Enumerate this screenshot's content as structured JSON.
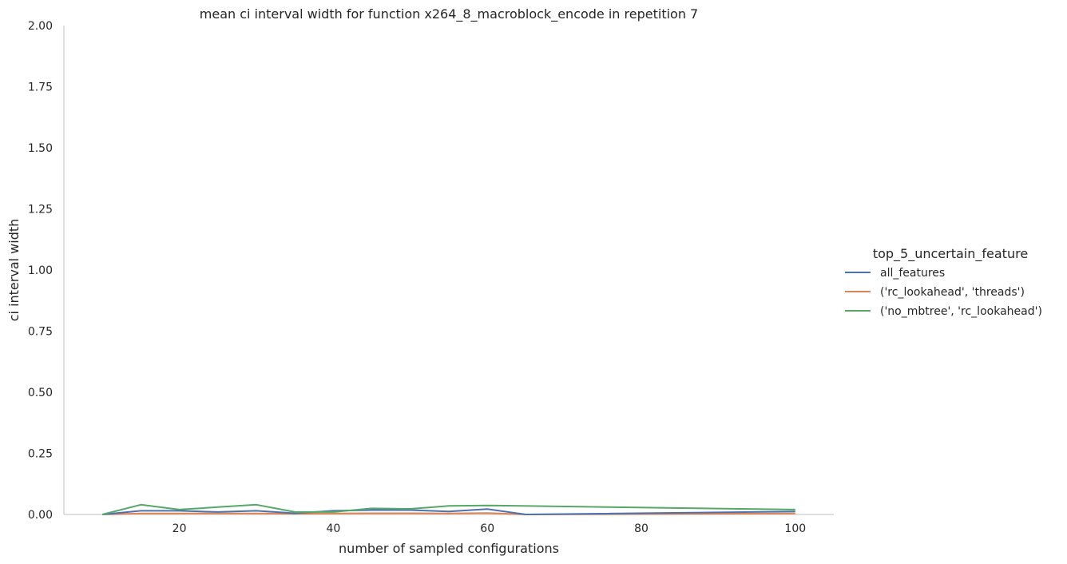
{
  "chart_data": {
    "type": "line",
    "title": "mean ci interval width for function x264_8_macroblock_encode in repetition 7",
    "xlabel": "number of sampled configurations",
    "ylabel": "ci interval width",
    "xlim": [
      5,
      105
    ],
    "ylim": [
      0,
      2.0
    ],
    "xticks": [
      20,
      40,
      60,
      80,
      100
    ],
    "xtick_labels": [
      "20",
      "40",
      "60",
      "80",
      "100"
    ],
    "yticks": [
      0,
      0.25,
      0.5,
      0.75,
      1.0,
      1.25,
      1.5,
      1.75,
      2.0
    ],
    "ytick_labels": [
      "0.00",
      "0.25",
      "0.50",
      "0.75",
      "1.00",
      "1.25",
      "1.50",
      "1.75",
      "2.00"
    ],
    "grid": false,
    "legend": {
      "title": "top_5_uncertain_feature",
      "placement": "right"
    },
    "series": [
      {
        "name": "all_features",
        "color": "#4c72b0",
        "x": [
          10,
          15,
          20,
          25,
          30,
          35,
          40,
          45,
          50,
          55,
          60,
          65,
          100
        ],
        "y": [
          0.0,
          0.015,
          0.015,
          0.01,
          0.015,
          0.005,
          0.015,
          0.018,
          0.018,
          0.012,
          0.022,
          0.0,
          0.012
        ]
      },
      {
        "name": "('rc_lookahead', 'threads')",
        "color": "#dd8452",
        "x": [
          10,
          15,
          20,
          25,
          30,
          35,
          40,
          45,
          50,
          55,
          60,
          65,
          100
        ],
        "y": [
          0.0,
          0.004,
          0.004,
          0.004,
          0.004,
          0.003,
          0.004,
          0.005,
          0.005,
          0.004,
          0.006,
          0.0,
          0.004
        ]
      },
      {
        "name": "('no_mbtree', 'rc_lookahead')",
        "color": "#55a868",
        "x": [
          10,
          15,
          20,
          25,
          30,
          35,
          40,
          45,
          50,
          55,
          60,
          100
        ],
        "y": [
          0.0,
          0.04,
          0.02,
          0.03,
          0.04,
          0.01,
          0.01,
          0.025,
          0.023,
          0.035,
          0.037,
          0.02
        ]
      }
    ]
  }
}
